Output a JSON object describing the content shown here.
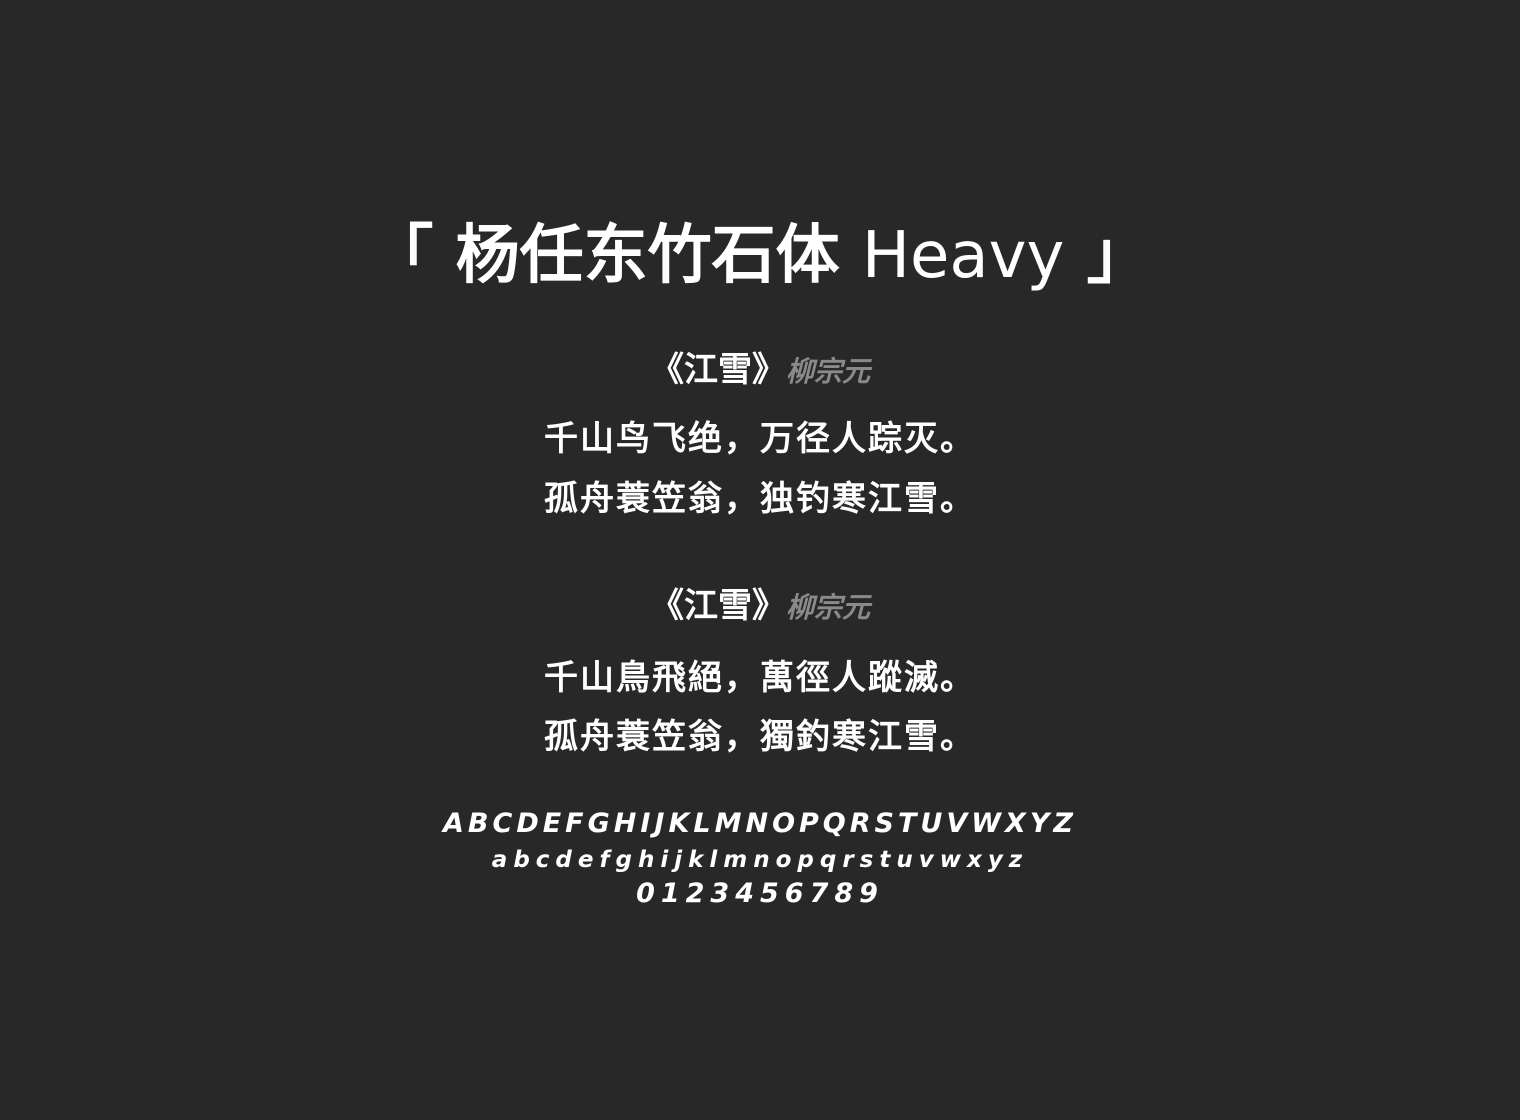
{
  "title": {
    "open_bracket": "「",
    "font_name_cjk": "杨任东竹石体",
    "font_name_latin": "Heavy",
    "close_bracket": "」"
  },
  "poems": [
    {
      "title": "《江雪》",
      "author": "柳宗元",
      "lines": [
        "千山鸟飞绝，万径人踪灭。",
        "孤舟蓑笠翁，独钓寒江雪。"
      ]
    },
    {
      "title": "《江雪》",
      "author": "柳宗元",
      "lines": [
        "千山鳥飛絕，萬徑人蹤滅。",
        "孤舟蓑笠翁，獨釣寒江雪。"
      ]
    }
  ],
  "alphabet": {
    "uppercase": "ABCDEFGHIJKLMNOPQRSTUVWXYZ",
    "lowercase": "abcdefghijklmnopqrstuvwxyz",
    "digits": "0123456789"
  },
  "colors": {
    "background": "#282828",
    "text": "#ffffff",
    "author": "#8a8a8a"
  }
}
